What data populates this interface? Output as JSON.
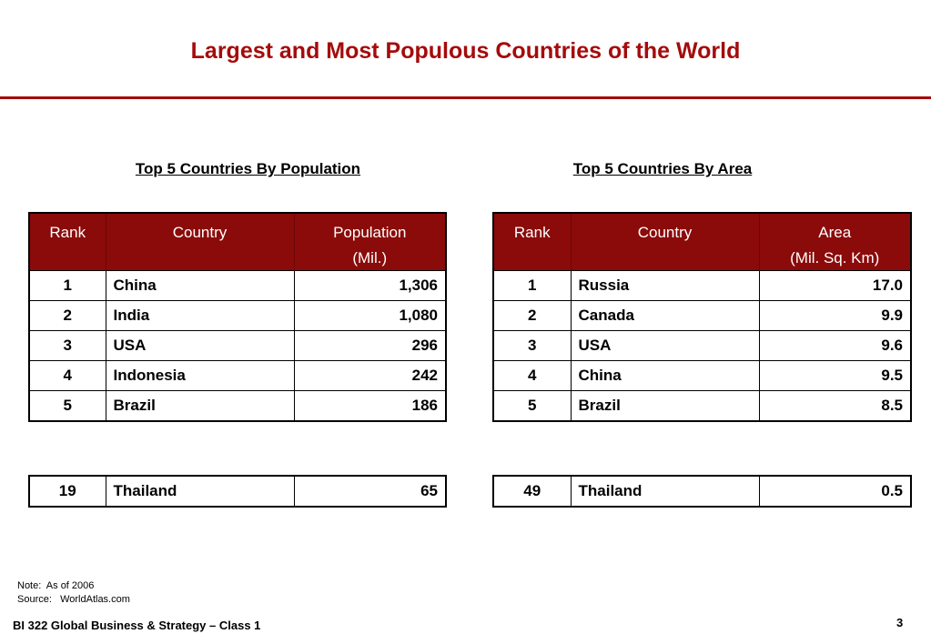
{
  "title": "Largest and Most Populous Countries of the World",
  "colors": {
    "accent": "#a50b0b",
    "header_bg": "#8b0a0a"
  },
  "population": {
    "heading": "Top 5 Countries By Population",
    "columns": {
      "rank": "Rank",
      "country": "Country",
      "value_line1": "Population",
      "value_line2": "(Mil.)"
    },
    "rows": [
      {
        "rank": "1",
        "country": "China",
        "value": "1,306"
      },
      {
        "rank": "2",
        "country": "India",
        "value": "1,080"
      },
      {
        "rank": "3",
        "country": "USA",
        "value": "296"
      },
      {
        "rank": "4",
        "country": "Indonesia",
        "value": "242"
      },
      {
        "rank": "5",
        "country": "Brazil",
        "value": "186"
      }
    ],
    "extra": {
      "rank": "19",
      "country": "Thailand",
      "value": "65"
    }
  },
  "area": {
    "heading": "Top 5 Countries By Area",
    "columns": {
      "rank": "Rank",
      "country": "Country",
      "value_line1": "Area",
      "value_line2": "(Mil. Sq. Km)"
    },
    "rows": [
      {
        "rank": "1",
        "country": "Russia",
        "value": "17.0"
      },
      {
        "rank": "2",
        "country": "Canada",
        "value": "9.9"
      },
      {
        "rank": "3",
        "country": "USA",
        "value": "9.6"
      },
      {
        "rank": "4",
        "country": "China",
        "value": "9.5"
      },
      {
        "rank": "5",
        "country": "Brazil",
        "value": "8.5"
      }
    ],
    "extra": {
      "rank": "49",
      "country": "Thailand",
      "value": "0.5"
    }
  },
  "note": {
    "line1": "Note:  As of 2006",
    "line2": "Source:   WorldAtlas.com"
  },
  "footer": "BI 322 Global Business & Strategy – Class 1",
  "page_number": "3"
}
